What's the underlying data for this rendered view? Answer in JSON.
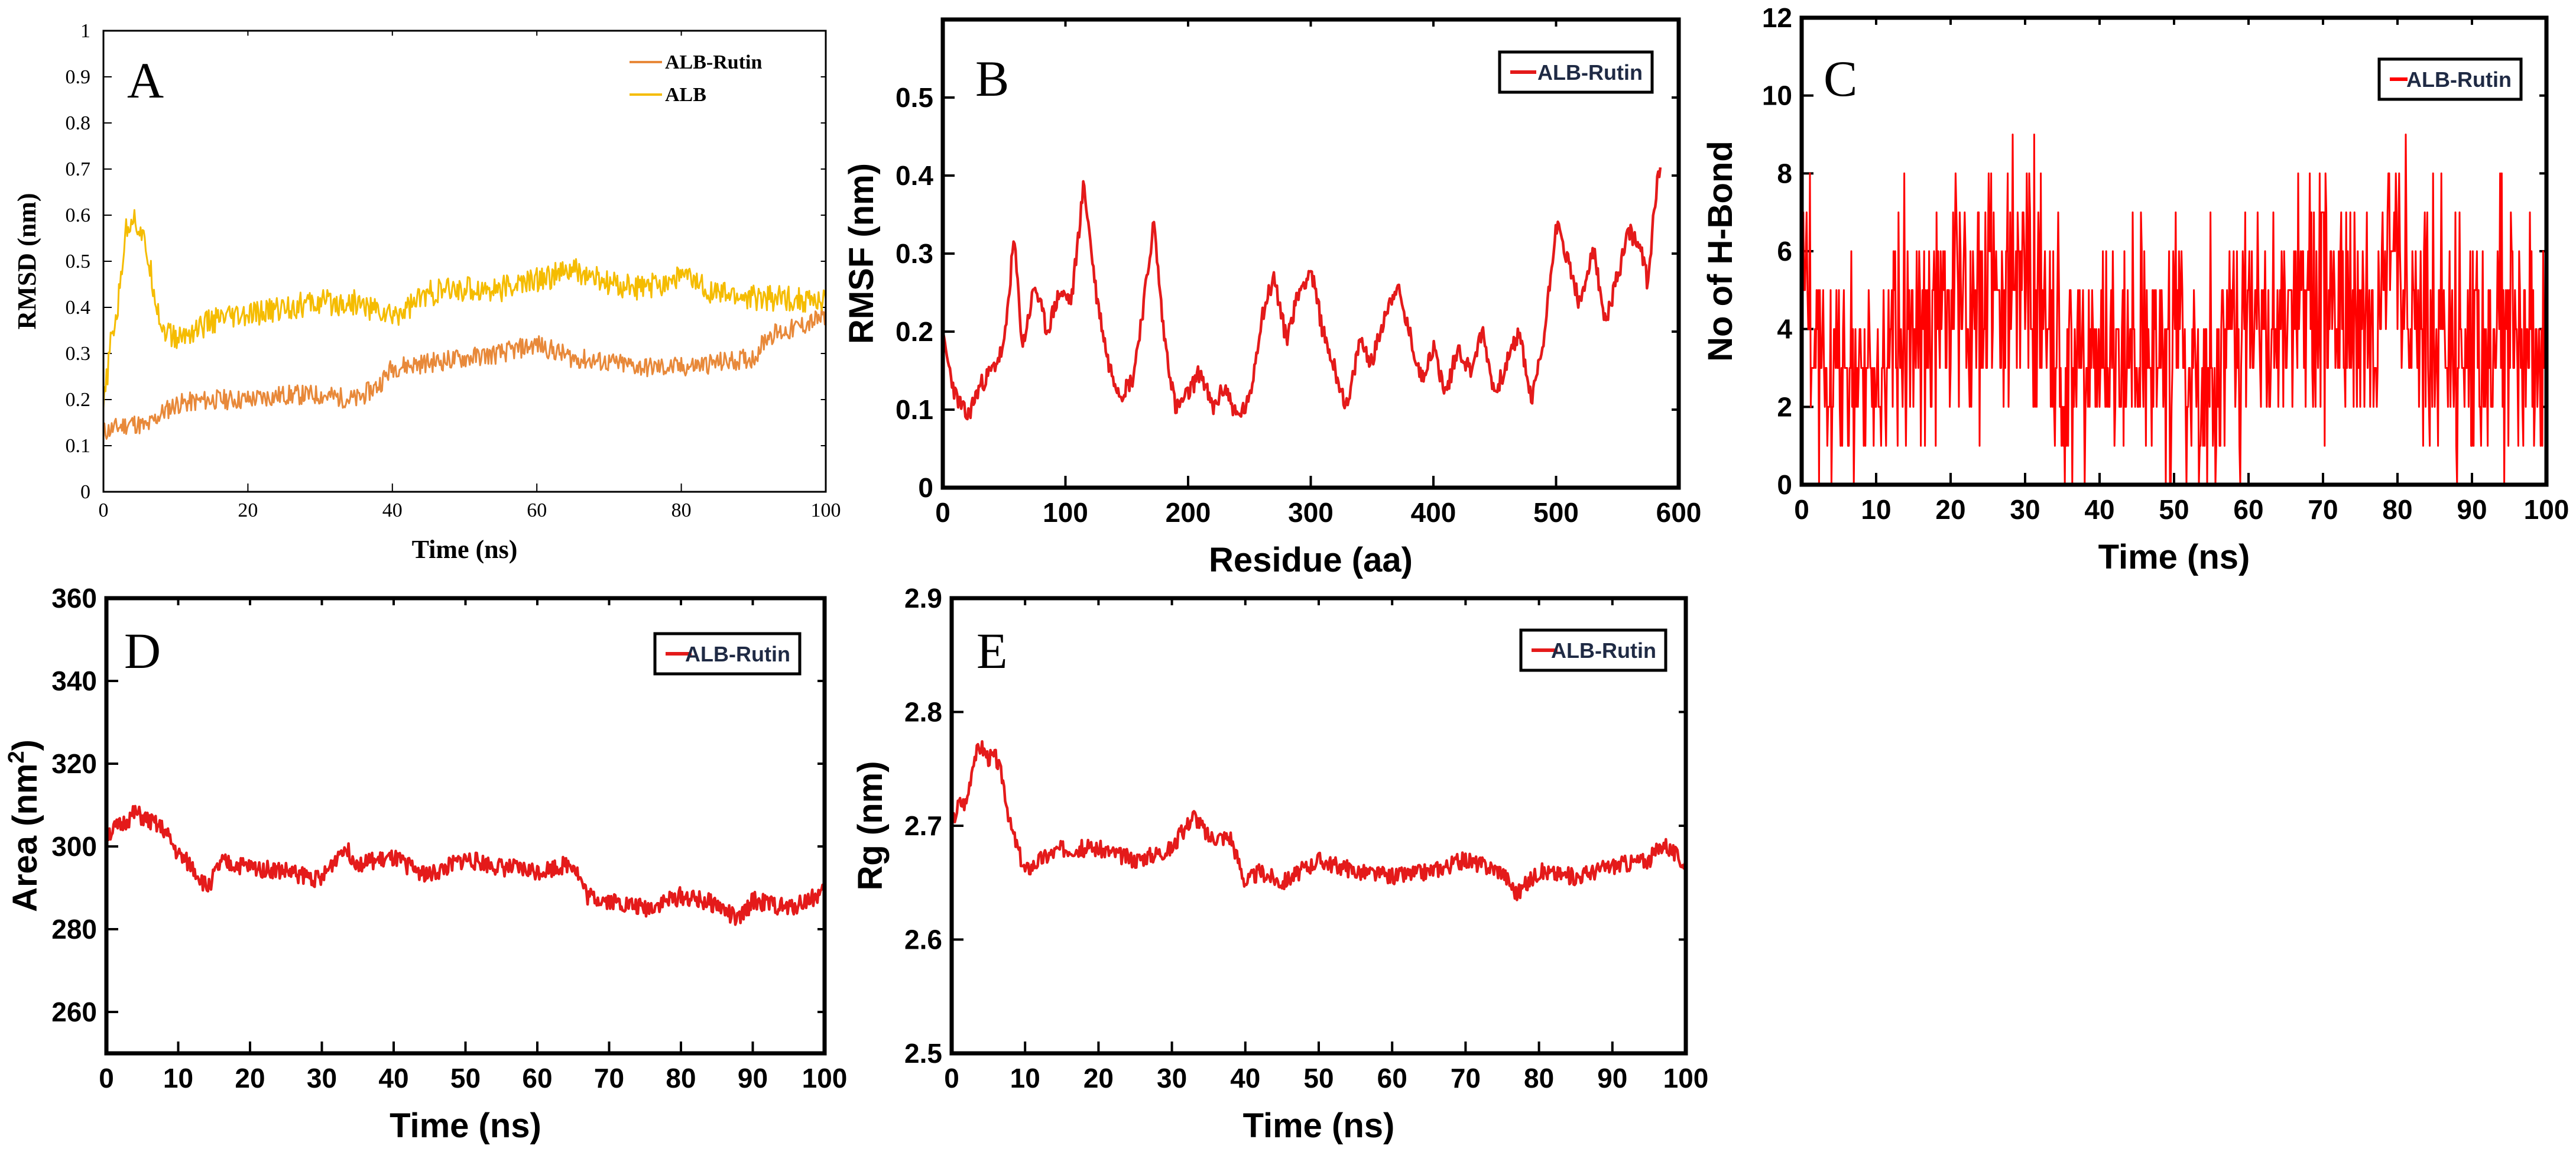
{
  "chart_data": [
    {
      "type": "line",
      "panel_label": "A",
      "xlabel": "Time (ns)",
      "ylabel": "RMSD (nm)",
      "xlim": [
        0,
        100
      ],
      "ylim": [
        0,
        1
      ],
      "xticks": [
        "0",
        "20",
        "40",
        "60",
        "80",
        "100"
      ],
      "yticks": [
        "0",
        "0.1",
        "0.2",
        "0.3",
        "0.4",
        "0.5",
        "0.6",
        "0.7",
        "0.8",
        "0.9",
        "1"
      ],
      "legend_position": "top-right",
      "series": [
        {
          "name": "ALB-Rutin",
          "color": "#e8893a",
          "x": [
            0,
            2,
            4,
            6,
            8,
            10,
            15,
            20,
            25,
            30,
            35,
            38,
            40,
            45,
            50,
            55,
            60,
            65,
            70,
            75,
            80,
            85,
            90,
            92,
            95,
            100
          ],
          "values": [
            0.13,
            0.14,
            0.15,
            0.14,
            0.17,
            0.19,
            0.2,
            0.2,
            0.21,
            0.21,
            0.2,
            0.23,
            0.27,
            0.28,
            0.29,
            0.3,
            0.32,
            0.29,
            0.28,
            0.27,
            0.27,
            0.28,
            0.29,
            0.34,
            0.35,
            0.38
          ]
        },
        {
          "name": "ALB",
          "color": "#f5bc00",
          "x": [
            0,
            1,
            2,
            3,
            4,
            5,
            6,
            7,
            8,
            10,
            15,
            20,
            25,
            30,
            35,
            40,
            45,
            50,
            55,
            60,
            65,
            70,
            75,
            80,
            85,
            90,
            95,
            100
          ],
          "values": [
            0.18,
            0.32,
            0.4,
            0.56,
            0.6,
            0.57,
            0.52,
            0.44,
            0.36,
            0.33,
            0.37,
            0.38,
            0.4,
            0.41,
            0.41,
            0.38,
            0.43,
            0.44,
            0.44,
            0.46,
            0.48,
            0.45,
            0.44,
            0.47,
            0.43,
            0.42,
            0.42,
            0.41
          ]
        }
      ]
    },
    {
      "type": "line",
      "panel_label": "B",
      "xlabel": "Residue (aa)",
      "ylabel": "RMSF (nm)",
      "xlim": [
        0,
        600
      ],
      "ylim": [
        0,
        0.6
      ],
      "xticks": [
        "0",
        "100",
        "200",
        "300",
        "400",
        "500",
        "600"
      ],
      "yticks": [
        "0",
        "0.1",
        "0.2",
        "0.3",
        "0.4",
        "0.5"
      ],
      "legend_position": "top-right",
      "series": [
        {
          "name": "ALB-Rutin",
          "color": "#e41a1a",
          "x": [
            0,
            10,
            20,
            30,
            40,
            50,
            58,
            65,
            75,
            85,
            95,
            105,
            115,
            125,
            135,
            145,
            155,
            165,
            172,
            180,
            190,
            200,
            210,
            220,
            230,
            240,
            250,
            260,
            270,
            280,
            290,
            300,
            310,
            320,
            330,
            340,
            350,
            360,
            370,
            380,
            390,
            400,
            410,
            420,
            430,
            440,
            450,
            460,
            470,
            480,
            490,
            500,
            510,
            520,
            530,
            540,
            550,
            560,
            570,
            575,
            580,
            585
          ],
          "values": [
            0.19,
            0.12,
            0.09,
            0.13,
            0.15,
            0.18,
            0.32,
            0.18,
            0.26,
            0.2,
            0.25,
            0.24,
            0.39,
            0.25,
            0.16,
            0.12,
            0.14,
            0.25,
            0.34,
            0.2,
            0.1,
            0.12,
            0.15,
            0.1,
            0.13,
            0.09,
            0.11,
            0.22,
            0.27,
            0.19,
            0.25,
            0.28,
            0.2,
            0.15,
            0.1,
            0.19,
            0.16,
            0.22,
            0.26,
            0.2,
            0.14,
            0.18,
            0.12,
            0.18,
            0.15,
            0.2,
            0.12,
            0.16,
            0.2,
            0.11,
            0.19,
            0.34,
            0.29,
            0.23,
            0.31,
            0.21,
            0.27,
            0.33,
            0.3,
            0.26,
            0.36,
            0.42
          ]
        }
      ]
    },
    {
      "type": "line",
      "panel_label": "C",
      "xlabel": "Time (ns)",
      "ylabel": "No of H-Bond",
      "xlim": [
        0,
        100
      ],
      "ylim": [
        0,
        12
      ],
      "xticks": [
        "0",
        "10",
        "20",
        "30",
        "40",
        "50",
        "60",
        "70",
        "80",
        "90",
        "100"
      ],
      "yticks": [
        "0",
        "2",
        "4",
        "6",
        "8",
        "10",
        "12"
      ],
      "legend_position": "top-right",
      "series": [
        {
          "name": "ALB-Rutin",
          "color": "#ff0000",
          "x": [
            0,
            5,
            10,
            15,
            20,
            25,
            30,
            35,
            40,
            45,
            50,
            55,
            60,
            65,
            70,
            75,
            80,
            85,
            90,
            95,
            100
          ],
          "values": [
            4,
            3,
            3,
            4,
            5,
            5,
            5,
            3,
            3,
            3,
            3,
            3,
            4,
            4,
            5,
            4,
            5,
            4,
            3,
            4,
            3
          ],
          "range_low": [
            0,
            0,
            0,
            0,
            1,
            1,
            0,
            0,
            0,
            0,
            0,
            0,
            0,
            1,
            1,
            1,
            0,
            0,
            0,
            0,
            0
          ],
          "range_high": [
            8,
            7,
            6,
            8,
            9,
            9,
            9,
            7,
            7,
            7,
            7,
            7,
            8,
            8,
            9,
            8,
            9,
            9,
            8,
            9,
            7
          ]
        }
      ]
    },
    {
      "type": "line",
      "panel_label": "D",
      "xlabel": "Time (ns)",
      "ylabel": "Area (nm",
      "ylabel_superscript": "2",
      "ylabel_suffix": ")",
      "xlim": [
        0,
        100
      ],
      "ylim": [
        250,
        360
      ],
      "xticks": [
        "0",
        "10",
        "20",
        "30",
        "40",
        "50",
        "60",
        "70",
        "80",
        "90",
        "100"
      ],
      "yticks": [
        "260",
        "280",
        "300",
        "320",
        "340",
        "360"
      ],
      "legend_position": "top-right",
      "series": [
        {
          "name": "ALB-Rutin",
          "color": "#e41a1a",
          "x": [
            0,
            2,
            4,
            6,
            8,
            10,
            12,
            14,
            16,
            20,
            25,
            30,
            33,
            35,
            40,
            45,
            50,
            55,
            60,
            65,
            67,
            70,
            75,
            80,
            85,
            88,
            90,
            95,
            100
          ],
          "values": [
            303,
            305,
            308,
            306,
            304,
            298,
            295,
            290,
            296,
            295,
            294,
            292,
            300,
            296,
            297,
            293,
            297,
            295,
            294,
            296,
            288,
            287,
            285,
            288,
            286,
            282,
            287,
            285,
            289
          ]
        }
      ]
    },
    {
      "type": "line",
      "panel_label": "E",
      "xlabel": "Time (ns)",
      "ylabel": "Rg (nm)",
      "xlim": [
        0,
        100
      ],
      "ylim": [
        2.5,
        2.9
      ],
      "xticks": [
        "0",
        "10",
        "20",
        "30",
        "40",
        "50",
        "60",
        "70",
        "80",
        "90",
        "100"
      ],
      "yticks": [
        "2.5",
        "2.6",
        "2.7",
        "2.8",
        "2.9"
      ],
      "legend_position": "top-right",
      "series": [
        {
          "name": "ALB-Rutin",
          "color": "#e41a1a",
          "x": [
            0,
            1,
            2,
            3,
            4,
            5,
            6,
            7,
            8,
            10,
            12,
            15,
            20,
            25,
            30,
            33,
            35,
            38,
            40,
            42,
            45,
            50,
            55,
            60,
            65,
            70,
            75,
            77,
            80,
            85,
            90,
            95,
            97,
            100
          ],
          "values": [
            2.7,
            2.72,
            2.72,
            2.76,
            2.77,
            2.76,
            2.76,
            2.74,
            2.7,
            2.66,
            2.67,
            2.68,
            2.68,
            2.67,
            2.68,
            2.71,
            2.69,
            2.69,
            2.65,
            2.66,
            2.65,
            2.67,
            2.66,
            2.655,
            2.66,
            2.67,
            2.66,
            2.64,
            2.66,
            2.655,
            2.665,
            2.67,
            2.685,
            2.665
          ]
        }
      ]
    }
  ]
}
